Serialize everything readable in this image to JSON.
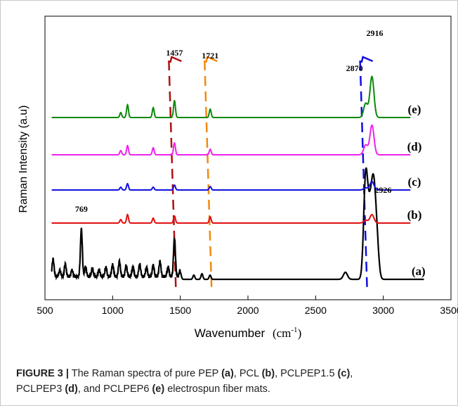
{
  "chart_data": {
    "type": "line",
    "xlabel": "Wavenumber (cm⁻¹)",
    "xlabel_main": "Wavenumber",
    "xlabel_unit": "(cm",
    "xlabel_sup": "-1",
    "xlabel_close": ")",
    "ylabel": "Raman Intensity (a.u)",
    "xlim": [
      500,
      3500
    ],
    "xticks": [
      500,
      1000,
      1500,
      2000,
      2500,
      3000,
      3500
    ],
    "y_ticks_shown": false,
    "grid": false,
    "legend": "none",
    "series": [
      {
        "name": "(a)",
        "color": "#000000",
        "label_at": 3260,
        "offset": 0,
        "peaks": [
          [
            560,
            25
          ],
          [
            610,
            9
          ],
          [
            650,
            18
          ],
          [
            700,
            9
          ],
          [
            769,
            68
          ],
          [
            800,
            14
          ],
          [
            850,
            12
          ],
          [
            900,
            10
          ],
          [
            950,
            13
          ],
          [
            1000,
            17
          ],
          [
            1050,
            22
          ],
          [
            1100,
            16
          ],
          [
            1150,
            14
          ],
          [
            1200,
            18
          ],
          [
            1250,
            13
          ],
          [
            1300,
            16
          ],
          [
            1350,
            22
          ],
          [
            1410,
            14
          ],
          [
            1457,
            55
          ],
          [
            1500,
            10
          ],
          [
            1600,
            6
          ],
          [
            1660,
            8
          ],
          [
            1720,
            6
          ],
          [
            2720,
            10
          ],
          [
            2870,
            145
          ],
          [
            2900,
            80
          ],
          [
            2926,
            115
          ],
          [
            2950,
            60
          ]
        ]
      },
      {
        "name": "(b)",
        "color": "#e01010",
        "label_at": 3230,
        "offset": 1,
        "peaks": [
          [
            1110,
            12
          ],
          [
            1060,
            5
          ],
          [
            1300,
            7
          ],
          [
            1457,
            10
          ],
          [
            1721,
            9
          ],
          [
            2870,
            4
          ],
          [
            2916,
            12
          ]
        ]
      },
      {
        "name": "(c)",
        "color": "#1010e0",
        "label_at": 3230,
        "offset": 2,
        "peaks": [
          [
            1110,
            9
          ],
          [
            1060,
            4
          ],
          [
            1300,
            4
          ],
          [
            1457,
            7
          ],
          [
            1721,
            5
          ],
          [
            2870,
            3
          ],
          [
            2916,
            12
          ]
        ]
      },
      {
        "name": "(d)",
        "color": "#ee22ee",
        "label_at": 3230,
        "offset": 3,
        "peaks": [
          [
            1110,
            13
          ],
          [
            1060,
            6
          ],
          [
            1300,
            10
          ],
          [
            1457,
            17
          ],
          [
            1721,
            8
          ],
          [
            2870,
            14
          ],
          [
            2916,
            42
          ]
        ]
      },
      {
        "name": "(e)",
        "color": "#0a8a0a",
        "label_at": 3230,
        "offset": 4,
        "peaks": [
          [
            1110,
            18
          ],
          [
            1060,
            7
          ],
          [
            1300,
            14
          ],
          [
            1457,
            24
          ],
          [
            1721,
            12
          ],
          [
            2870,
            20
          ],
          [
            2916,
            58
          ]
        ]
      }
    ],
    "annotations": [
      {
        "text": "769",
        "x": 769,
        "series": "(a)"
      },
      {
        "text": "1457",
        "x": 1457,
        "series": "(e)"
      },
      {
        "text": "1721",
        "x": 1721,
        "series": "(e)"
      },
      {
        "text": "2870",
        "x": 2870,
        "series": "(e)"
      },
      {
        "text": "2916",
        "x": 2916,
        "series": "(e)"
      },
      {
        "text": "2926",
        "x": 2926,
        "series": "(a)"
      }
    ],
    "guide_lines": [
      {
        "x": 1457,
        "color": "#b01010"
      },
      {
        "x": 1721,
        "color": "#f08a10"
      },
      {
        "x": 2870,
        "color": "#1010e0"
      }
    ]
  },
  "caption": {
    "label": "FIGURE 3 |",
    "p1": " The Raman spectra of pure PEP ",
    "b1": "(a)",
    "p2": ", PCL ",
    "b2": "(b)",
    "p3": ", PCLPEP1.5 ",
    "b3": "(c)",
    "p4": ",",
    "p5": "PCLPEP3 ",
    "b4": "(d)",
    "p6": ", and PCLPEP6 ",
    "b5": "(e)",
    "p7": " electrospun fiber mats."
  }
}
